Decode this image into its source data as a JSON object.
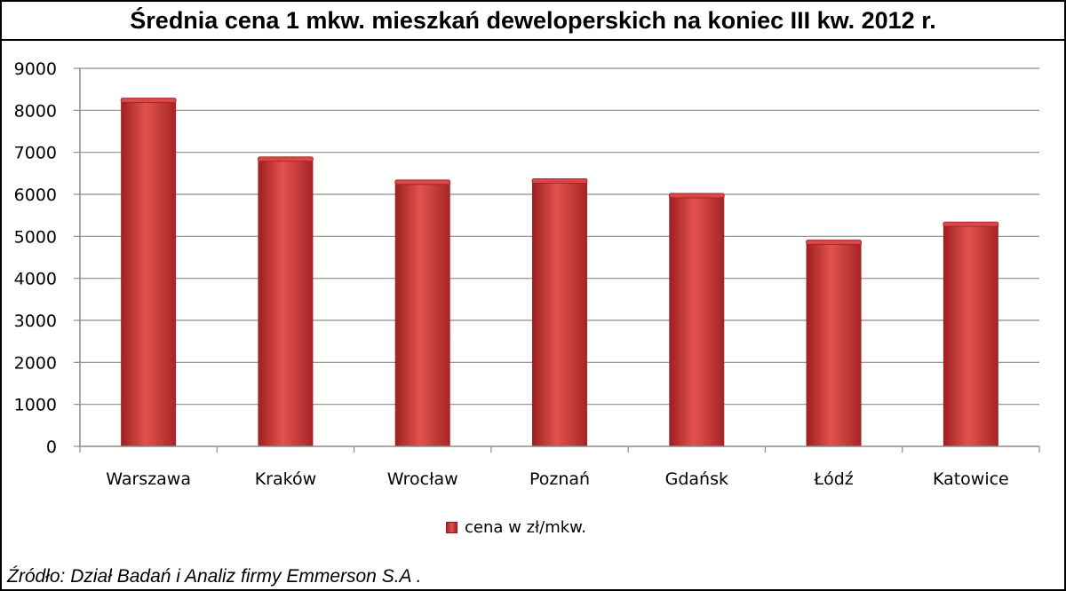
{
  "chart_data": {
    "type": "bar",
    "title": "Średnia cena 1 mkw. mieszkań deweloperskich na koniec III kw. 2012 r.",
    "categories": [
      "Warszawa",
      "Kraków",
      "Wrocław",
      "Poznań",
      "Gdańsk",
      "Łódź",
      "Katowice"
    ],
    "series": [
      {
        "name": "cena w zł/mkw.",
        "values": [
          8250,
          6850,
          6300,
          6330,
          5980,
          4870,
          5300
        ]
      }
    ],
    "ylim": [
      0,
      9000
    ],
    "yticks": [
      0,
      1000,
      2000,
      3000,
      4000,
      5000,
      6000,
      7000,
      8000,
      9000
    ],
    "xlabel": "",
    "ylabel": "",
    "grid": true,
    "legend_position": "bottom",
    "bar_color": "#c8312f"
  },
  "source": "Źródło: Dział Badań i Analiz firmy Emmerson S.A ."
}
